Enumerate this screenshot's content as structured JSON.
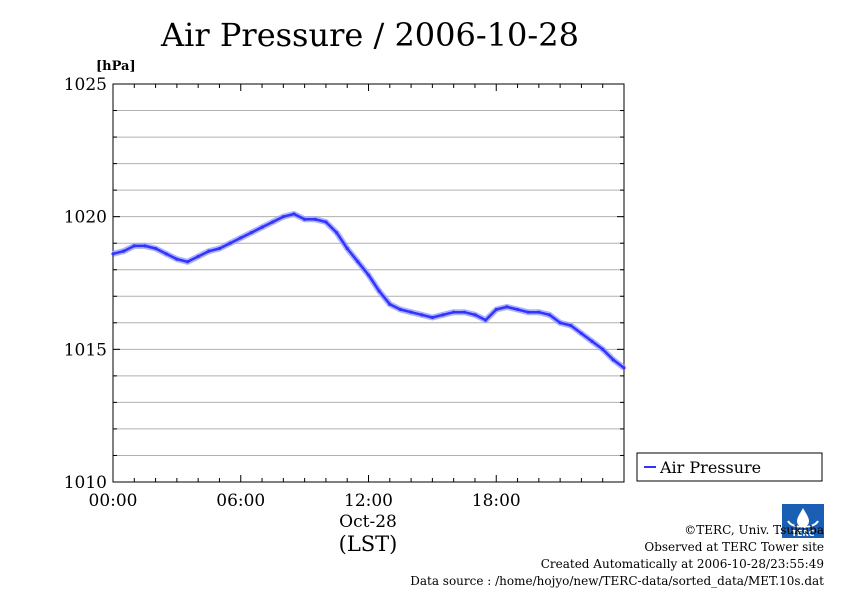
{
  "chart_data": {
    "type": "line",
    "title": "Air Pressure / 2006-10-28",
    "ylabel": "[hPa]",
    "xlabel_date": "Oct-28",
    "xlabel_tz": "(LST)",
    "xlim": [
      0,
      24
    ],
    "ylim": [
      1010,
      1025
    ],
    "x_ticks": [
      {
        "value": 0,
        "label": "00:00"
      },
      {
        "value": 6,
        "label": "06:00"
      },
      {
        "value": 12,
        "label": "12:00"
      },
      {
        "value": 18,
        "label": "18:00"
      }
    ],
    "y_ticks": [
      {
        "value": 1010,
        "label": "1010"
      },
      {
        "value": 1015,
        "label": "1015"
      },
      {
        "value": 1020,
        "label": "1020"
      },
      {
        "value": 1025,
        "label": "1025"
      }
    ],
    "grid": true,
    "legend_position": "right",
    "series": [
      {
        "name": "Air Pressure",
        "color": "#3333ff",
        "points": [
          [
            0.0,
            1018.6
          ],
          [
            0.5,
            1018.7
          ],
          [
            1.0,
            1018.9
          ],
          [
            1.5,
            1018.9
          ],
          [
            2.0,
            1018.8
          ],
          [
            2.5,
            1018.6
          ],
          [
            3.0,
            1018.4
          ],
          [
            3.5,
            1018.3
          ],
          [
            4.0,
            1018.5
          ],
          [
            4.5,
            1018.7
          ],
          [
            5.0,
            1018.8
          ],
          [
            5.5,
            1019.0
          ],
          [
            6.0,
            1019.2
          ],
          [
            6.5,
            1019.4
          ],
          [
            7.0,
            1019.6
          ],
          [
            7.5,
            1019.8
          ],
          [
            8.0,
            1020.0
          ],
          [
            8.5,
            1020.1
          ],
          [
            9.0,
            1019.9
          ],
          [
            9.5,
            1019.9
          ],
          [
            10.0,
            1019.8
          ],
          [
            10.5,
            1019.4
          ],
          [
            11.0,
            1018.8
          ],
          [
            11.5,
            1018.3
          ],
          [
            12.0,
            1017.8
          ],
          [
            12.5,
            1017.2
          ],
          [
            13.0,
            1016.7
          ],
          [
            13.5,
            1016.5
          ],
          [
            14.0,
            1016.4
          ],
          [
            14.5,
            1016.3
          ],
          [
            15.0,
            1016.2
          ],
          [
            15.5,
            1016.3
          ],
          [
            16.0,
            1016.4
          ],
          [
            16.5,
            1016.4
          ],
          [
            17.0,
            1016.3
          ],
          [
            17.5,
            1016.1
          ],
          [
            18.0,
            1016.5
          ],
          [
            18.5,
            1016.6
          ],
          [
            19.0,
            1016.5
          ],
          [
            19.5,
            1016.4
          ],
          [
            20.0,
            1016.4
          ],
          [
            20.5,
            1016.3
          ],
          [
            21.0,
            1016.0
          ],
          [
            21.5,
            1015.9
          ],
          [
            22.0,
            1015.6
          ],
          [
            22.5,
            1015.3
          ],
          [
            23.0,
            1015.0
          ],
          [
            23.5,
            1014.6
          ],
          [
            24.0,
            1014.3
          ]
        ]
      }
    ]
  },
  "credits": {
    "copyright": "©TERC, Univ. Tsukuba",
    "observed": "Observed at TERC Tower site",
    "created": "Created Automatically at 2006-10-28/23:55:49",
    "source": "Data source : /home/hojyo/new/TERC-data/sorted_data/MET.10s.dat",
    "logo_text": "TERC"
  }
}
